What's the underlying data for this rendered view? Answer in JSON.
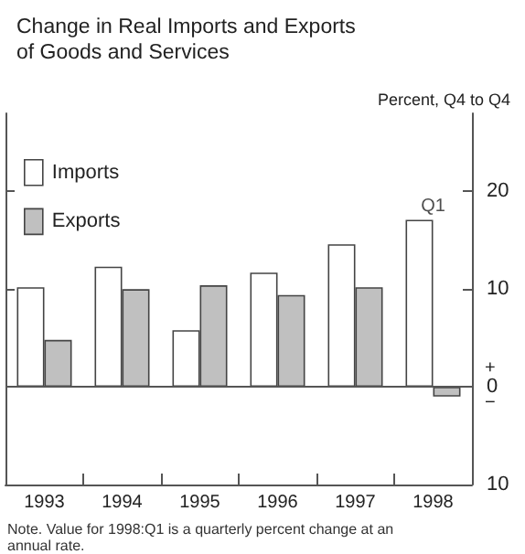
{
  "chart_data": {
    "type": "bar",
    "title": "Change in Real Imports and Exports\nof Goods and Services",
    "ylabel": "Percent, Q4 to Q4",
    "categories": [
      "1993",
      "1994",
      "1995",
      "1996",
      "1997",
      "1998"
    ],
    "series": [
      {
        "name": "Imports",
        "color": "#ffffff",
        "values": [
          10.2,
          12.3,
          5.8,
          11.7,
          14.6,
          17.1
        ]
      },
      {
        "name": "Exports",
        "color": "#c0c0c0",
        "values": [
          4.8,
          10.0,
          10.4,
          9.4,
          10.2,
          -1.0
        ]
      }
    ],
    "ylim": [
      -10,
      28
    ],
    "yticks": [
      {
        "value": -10,
        "label": "10"
      },
      0,
      10,
      20
    ],
    "ref_lines": [
      {
        "axis": "y",
        "value": 0,
        "color": "#555555"
      }
    ],
    "annotations": [
      {
        "text": "Q1",
        "x": "1998",
        "y": 17.1
      },
      "+",
      "−",
      "Note. Value for 1998:Q1 is a quarterly percent change at an\nannual rate."
    ],
    "legend": "top left",
    "grid": false
  }
}
